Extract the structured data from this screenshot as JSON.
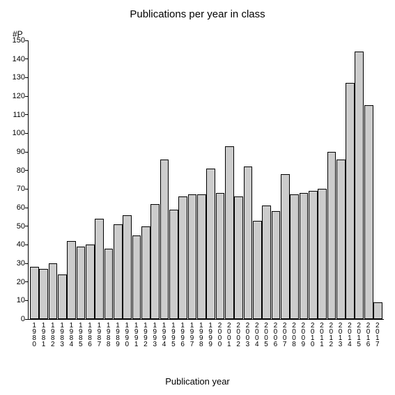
{
  "chart": {
    "type": "bar",
    "title": "Publications per year in class",
    "title_fontsize": 15,
    "ylabel": "#P",
    "xlabel": "Publication year",
    "label_fontsize": 13,
    "tick_fontsize": 11,
    "background_color": "#ffffff",
    "bar_fill": "#cccccc",
    "bar_border": "#000000",
    "axis_color": "#000000",
    "ylim": [
      0,
      150
    ],
    "ytick_step": 10,
    "categories": [
      "1980",
      "1981",
      "1982",
      "1983",
      "1984",
      "1985",
      "1986",
      "1987",
      "1988",
      "1989",
      "1990",
      "1991",
      "1992",
      "1993",
      "1994",
      "1995",
      "1996",
      "1997",
      "1998",
      "1999",
      "2000",
      "2001",
      "2002",
      "2003",
      "2004",
      "2005",
      "2006",
      "2007",
      "2008",
      "2009",
      "2010",
      "2011",
      "2012",
      "2013",
      "2014",
      "2015",
      "2016",
      "2017"
    ],
    "values": [
      28,
      27,
      30,
      24,
      42,
      39,
      40,
      54,
      38,
      51,
      56,
      45,
      50,
      62,
      86,
      59,
      66,
      67,
      67,
      81,
      68,
      93,
      66,
      82,
      53,
      61,
      58,
      78,
      67,
      68,
      69,
      70,
      90,
      86,
      127,
      144,
      115,
      9
    ]
  }
}
